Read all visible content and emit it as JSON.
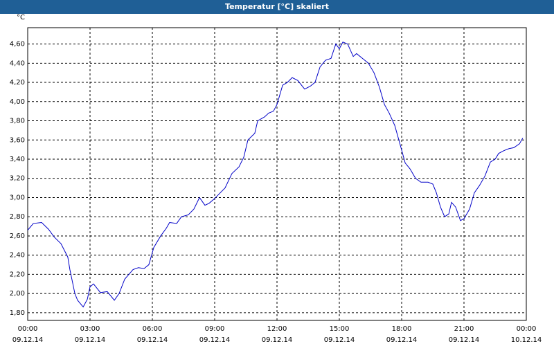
{
  "window_title": "Temperatur [°C] skaliert",
  "chart_data": {
    "type": "line",
    "y_unit": "°C",
    "x": [
      0,
      0.27,
      0.67,
      1,
      1.27,
      1.6,
      1.93,
      2.03,
      2.27,
      2.4,
      2.67,
      2.87,
      3,
      3.17,
      3.5,
      3.83,
      4.17,
      4.4,
      4.67,
      5.07,
      5.33,
      5.6,
      5.83,
      6.07,
      6.4,
      6.67,
      6.83,
      7.17,
      7.4,
      7.73,
      8,
      8.27,
      8.53,
      8.73,
      9,
      9.27,
      9.5,
      9.83,
      10.17,
      10.4,
      10.6,
      10.93,
      11.07,
      11.4,
      11.6,
      11.83,
      12,
      12.27,
      12.5,
      12.73,
      13,
      13.33,
      13.6,
      13.83,
      14.07,
      14.33,
      14.6,
      14.83,
      15,
      15.17,
      15.4,
      15.67,
      15.83,
      16.17,
      16.4,
      16.67,
      16.93,
      17.17,
      17.4,
      17.67,
      17.93,
      18.17,
      18.4,
      18.67,
      18.93,
      19.27,
      19.5,
      19.67,
      19.87,
      20.07,
      20.27,
      20.4,
      20.6,
      20.83,
      21,
      21.27,
      21.5,
      21.73,
      22,
      22.27,
      22.5,
      22.67,
      22.93,
      23.17,
      23.4,
      23.67,
      23.83
    ],
    "series": [
      {
        "color": "#0000c8",
        "values": [
          2.66,
          2.73,
          2.74,
          2.67,
          2.59,
          2.52,
          2.38,
          2.25,
          2.0,
          1.93,
          1.86,
          1.94,
          2.07,
          2.1,
          2.01,
          2.02,
          1.93,
          2.0,
          2.15,
          2.25,
          2.27,
          2.26,
          2.3,
          2.48,
          2.6,
          2.68,
          2.74,
          2.73,
          2.8,
          2.82,
          2.88,
          3.0,
          2.92,
          2.94,
          2.99,
          3.05,
          3.1,
          3.25,
          3.32,
          3.42,
          3.6,
          3.67,
          3.8,
          3.84,
          3.88,
          3.9,
          3.97,
          4.17,
          4.2,
          4.25,
          4.22,
          4.13,
          4.16,
          4.2,
          4.36,
          4.43,
          4.45,
          4.6,
          4.55,
          4.62,
          4.6,
          4.47,
          4.5,
          4.44,
          4.4,
          4.3,
          4.15,
          3.97,
          3.88,
          3.75,
          3.55,
          3.36,
          3.3,
          3.2,
          3.16,
          3.16,
          3.14,
          3.05,
          2.9,
          2.8,
          2.83,
          2.95,
          2.9,
          2.76,
          2.78,
          2.88,
          3.05,
          3.12,
          3.22,
          3.37,
          3.4,
          3.46,
          3.49,
          3.51,
          3.52,
          3.56,
          3.62
        ]
      }
    ],
    "xlim": [
      0,
      24
    ],
    "xticks": [
      {
        "value": 0,
        "label": "00:00",
        "date": "09.12.14"
      },
      {
        "value": 3,
        "label": "03:00",
        "date": "09.12.14"
      },
      {
        "value": 6,
        "label": "06:00",
        "date": "09.12.14"
      },
      {
        "value": 9,
        "label": "09:00",
        "date": "09.12.14"
      },
      {
        "value": 12,
        "label": "12:00",
        "date": "09.12.14"
      },
      {
        "value": 15,
        "label": "15:00",
        "date": "09.12.14"
      },
      {
        "value": 18,
        "label": "18:00",
        "date": "09.12.14"
      },
      {
        "value": 21,
        "label": "21:00",
        "date": "09.12.14"
      },
      {
        "value": 24,
        "label": "00:00",
        "date": "10.12.14"
      }
    ],
    "ylim": [
      1.72,
      4.77
    ],
    "yticks": [
      {
        "value": 1.8,
        "label": "1,80"
      },
      {
        "value": 2.0,
        "label": "2,00"
      },
      {
        "value": 2.2,
        "label": "2,20"
      },
      {
        "value": 2.4,
        "label": "2,40"
      },
      {
        "value": 2.6,
        "label": "2,60"
      },
      {
        "value": 2.8,
        "label": "2,80"
      },
      {
        "value": 3.0,
        "label": "3,00"
      },
      {
        "value": 3.2,
        "label": "3,20"
      },
      {
        "value": 3.4,
        "label": "3,40"
      },
      {
        "value": 3.6,
        "label": "3,60"
      },
      {
        "value": 3.8,
        "label": "3,80"
      },
      {
        "value": 4.0,
        "label": "4,00"
      },
      {
        "value": 4.2,
        "label": "4,20"
      },
      {
        "value": 4.4,
        "label": "4,40"
      },
      {
        "value": 4.6,
        "label": "4,60"
      }
    ],
    "grid": true
  }
}
